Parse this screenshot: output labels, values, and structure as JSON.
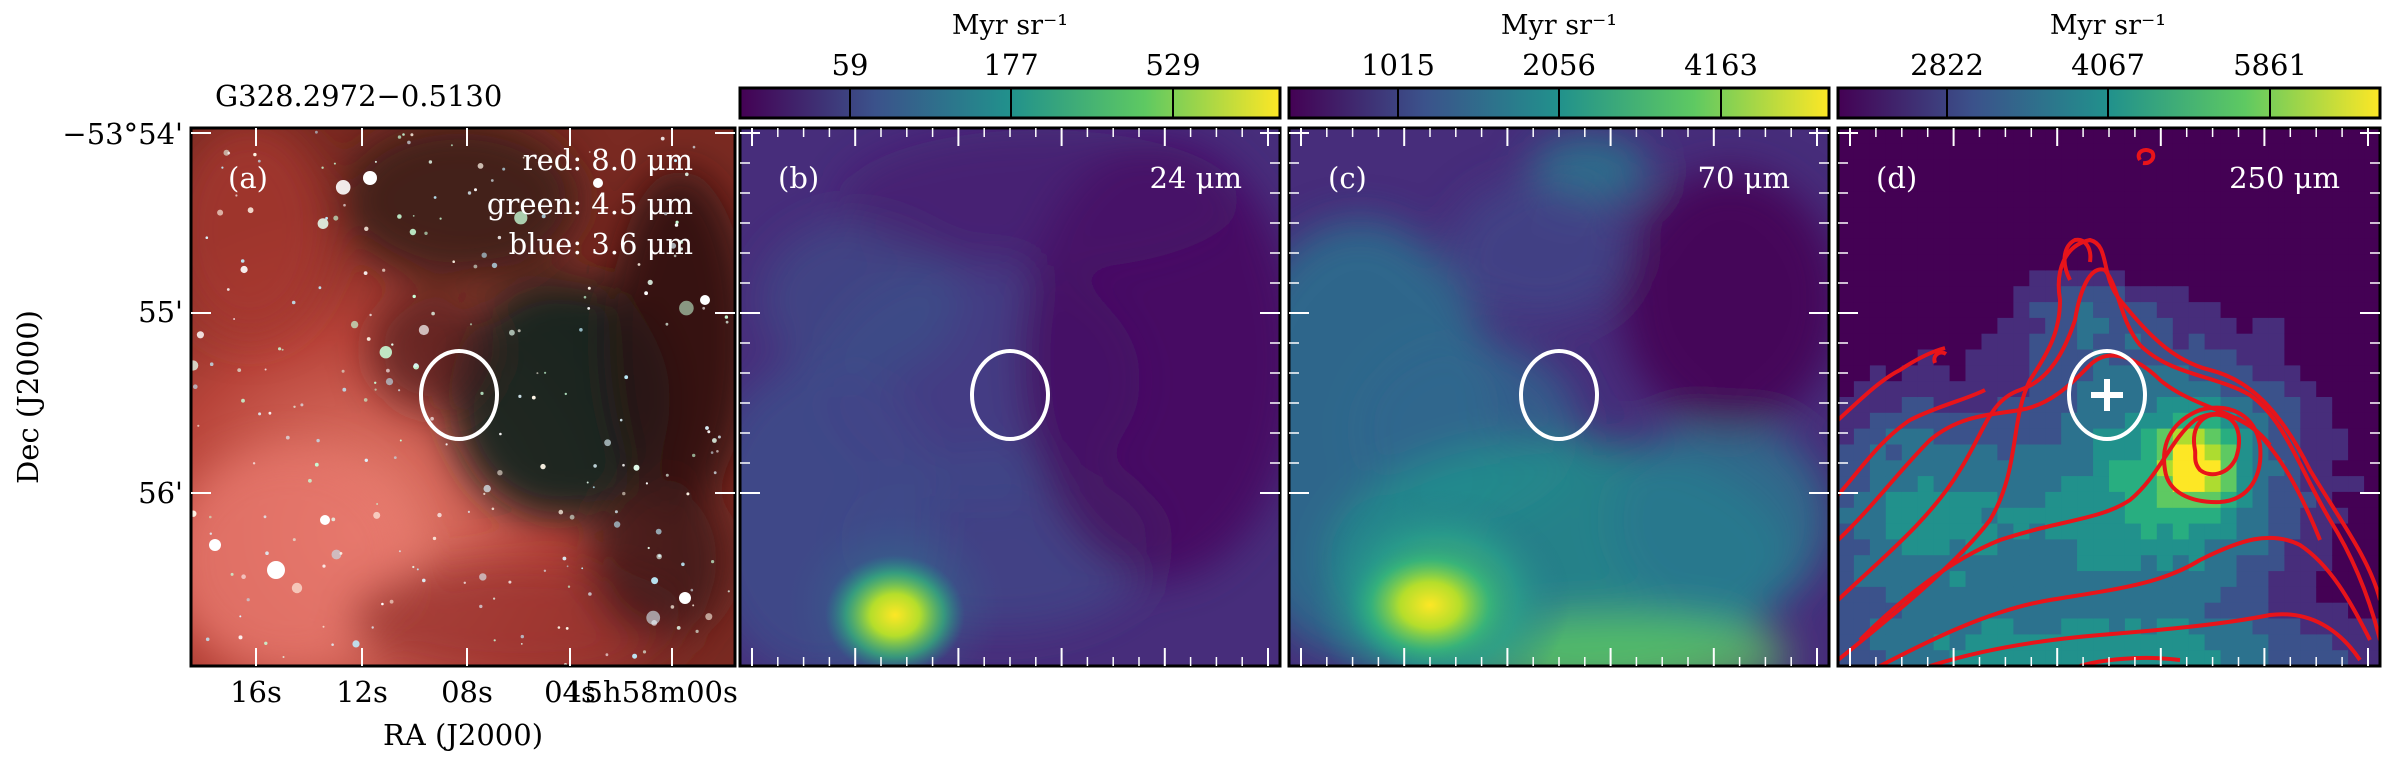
{
  "source_name": "G328.2972−0.5130",
  "axes": {
    "ra_label": "RA (J2000)",
    "dec_label": "Dec (J2000)",
    "ra_ticks": [
      "16s",
      "12s",
      "08s",
      "04s",
      "15h58m00s"
    ],
    "dec_ticks": [
      "−53°54'",
      "55'",
      "56'"
    ]
  },
  "panels": [
    {
      "letter": "(a)",
      "legend": [
        "red: 8.0 μm",
        "green: 4.5 μm",
        "blue: 3.6 μm"
      ]
    },
    {
      "letter": "(b)",
      "band": "24 μm",
      "colorbar_unit": "Myr sr⁻¹",
      "colorbar_ticks": [
        "59",
        "177",
        "529"
      ]
    },
    {
      "letter": "(c)",
      "band": "70 μm",
      "colorbar_unit": "Myr sr⁻¹",
      "colorbar_ticks": [
        "1015",
        "2056",
        "4163"
      ]
    },
    {
      "letter": "(d)",
      "band": "250 μm",
      "colorbar_unit": "Myr sr⁻¹",
      "colorbar_ticks": [
        "2822",
        "4067",
        "5861"
      ]
    }
  ],
  "colors": {
    "viridis": [
      "#440154",
      "#3b528b",
      "#21918c",
      "#5ec962",
      "#fde725"
    ],
    "contour": "#e8141a",
    "marker": "#ffffff"
  }
}
